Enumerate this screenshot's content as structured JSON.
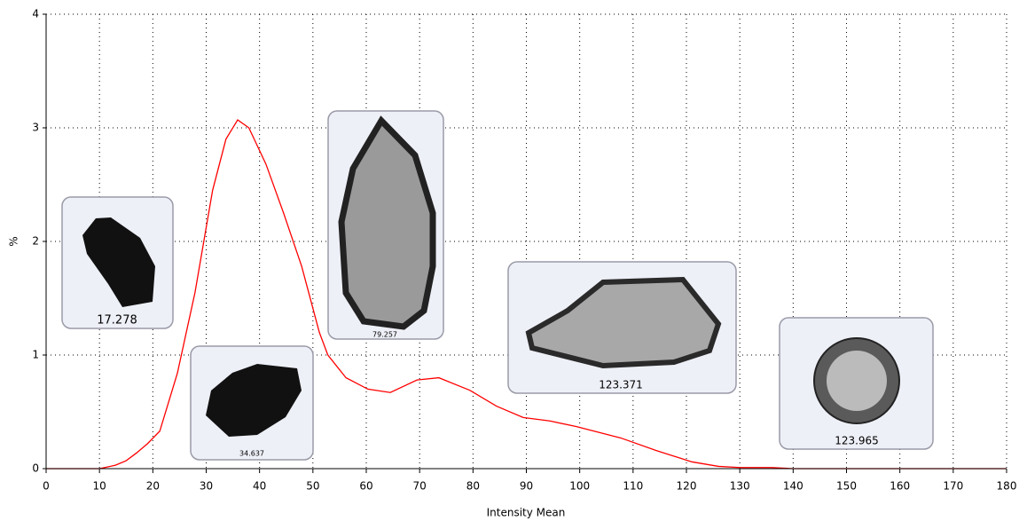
{
  "chart_data": {
    "type": "line",
    "x_label": "Intensity Mean",
    "y_label": "%",
    "x": [
      0,
      10,
      11,
      13,
      15,
      17,
      19,
      21.3,
      24.6,
      27.9,
      31.2,
      33.7,
      35.9,
      38,
      41.2,
      44.5,
      47.9,
      51.2,
      52.8,
      56.2,
      60.3,
      64.5,
      69.5,
      73.6,
      79.4,
      84.4,
      89.4,
      94.4,
      99.4,
      107.7,
      114.3,
      121,
      126,
      130,
      136,
      140,
      180
    ],
    "series": [
      {
        "name": "%",
        "color": "#ff0000",
        "values": [
          0,
          0,
          0.01,
          0.03,
          0.07,
          0.14,
          0.22,
          0.33,
          0.84,
          1.55,
          2.45,
          2.9,
          3.07,
          3.0,
          2.68,
          2.25,
          1.78,
          1.2,
          1.0,
          0.8,
          0.7,
          0.67,
          0.78,
          0.8,
          0.69,
          0.55,
          0.45,
          0.42,
          0.37,
          0.27,
          0.16,
          0.06,
          0.02,
          0.01,
          0.01,
          0,
          0
        ]
      }
    ],
    "xlim": [
      0,
      180
    ],
    "xticks": [
      0,
      10,
      20,
      30,
      40,
      50,
      60,
      70,
      80,
      90,
      100,
      110,
      120,
      130,
      140,
      150,
      160,
      170,
      180
    ],
    "ylim": [
      0,
      4
    ],
    "yticks": [
      0,
      1,
      2,
      3,
      4
    ],
    "grid": true,
    "annotations": [
      "17.278",
      "34.637",
      "79.257",
      "123.371",
      "123.965"
    ]
  }
}
